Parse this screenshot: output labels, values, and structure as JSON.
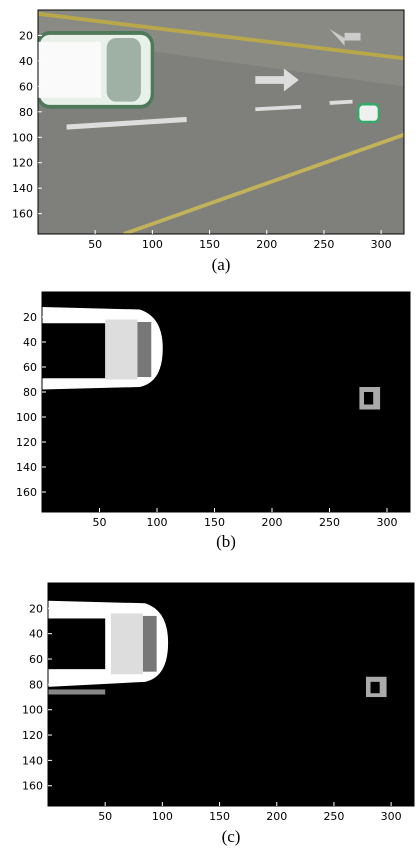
{
  "panels": [
    {
      "label": "(a)",
      "xlim": [
        0,
        320
      ],
      "ylim": [
        0,
        176
      ],
      "xticks": [
        50,
        100,
        150,
        200,
        250,
        300
      ],
      "yticks": [
        20,
        40,
        60,
        80,
        100,
        120,
        140,
        160
      ]
    },
    {
      "label": "(b)",
      "xlim": [
        0,
        320
      ],
      "ylim": [
        0,
        176
      ],
      "xticks": [
        50,
        100,
        150,
        200,
        250,
        300
      ],
      "yticks": [
        20,
        40,
        60,
        80,
        100,
        120,
        140,
        160
      ]
    },
    {
      "label": "(c)",
      "xlim": [
        0,
        320
      ],
      "ylim": [
        0,
        176
      ],
      "xticks": [
        50,
        100,
        150,
        200,
        250,
        300
      ],
      "yticks": [
        20,
        40,
        60,
        80,
        100,
        120,
        140,
        160
      ]
    }
  ]
}
